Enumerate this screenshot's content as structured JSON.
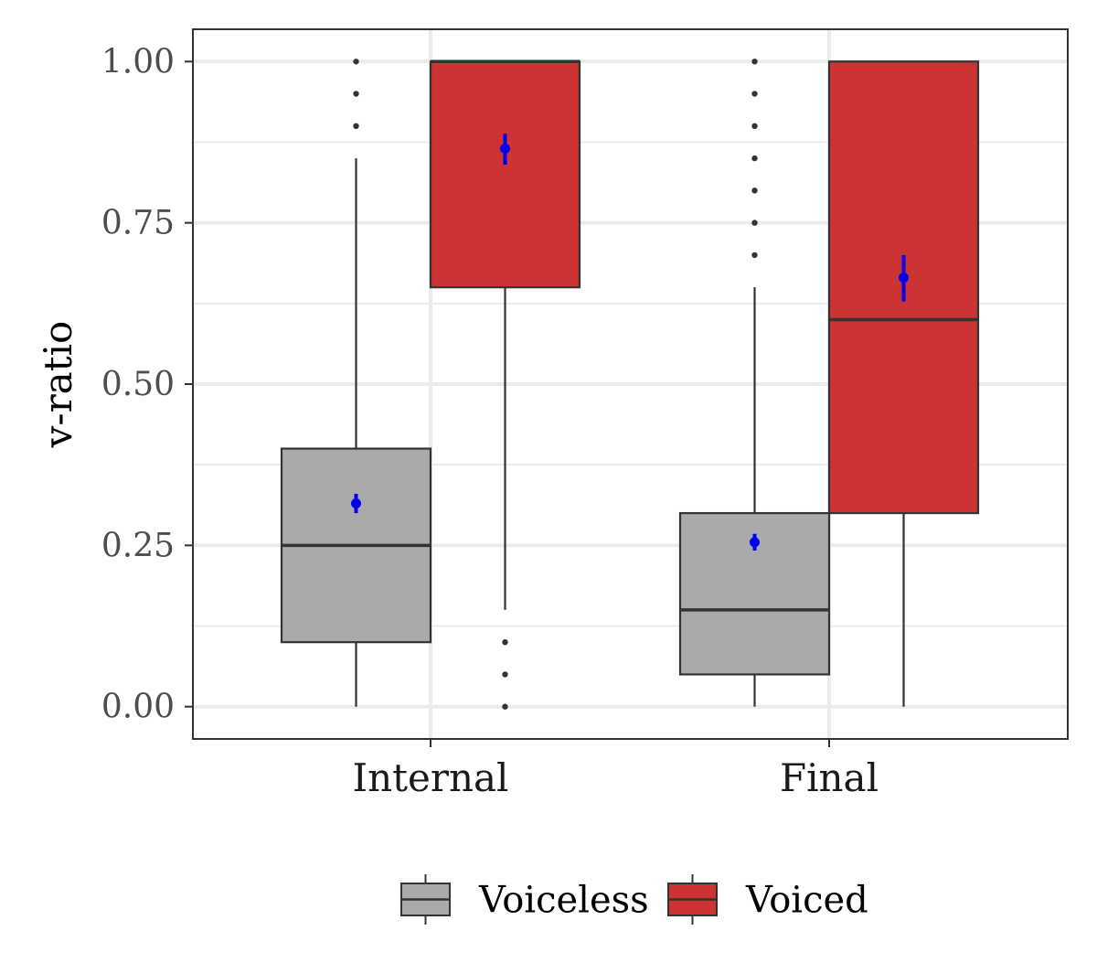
{
  "chart_data": {
    "type": "boxplot",
    "title": "",
    "xlabel": "",
    "ylabel": "v-ratio",
    "ylim": [
      -0.05,
      1.05
    ],
    "yticks": [
      0.0,
      0.25,
      0.5,
      0.75,
      1.0
    ],
    "ytick_labels": [
      "0.00",
      "0.25",
      "0.50",
      "0.75",
      "1.00"
    ],
    "categories": [
      "Internal",
      "Final"
    ],
    "grid": true,
    "legend_position": "bottom",
    "series": [
      {
        "name": "Voiceless",
        "color": "#aaaaaa",
        "boxes": [
          {
            "category": "Internal",
            "whisker_low": 0.0,
            "q1": 0.1,
            "median": 0.25,
            "q3": 0.4,
            "whisker_high": 0.85,
            "outliers": [
              0.9,
              0.95,
              1.0
            ],
            "mean": 0.315,
            "mean_ci": [
              0.3,
              0.33
            ]
          },
          {
            "category": "Final",
            "whisker_low": 0.0,
            "q1": 0.05,
            "median": 0.15,
            "q3": 0.3,
            "whisker_high": 0.65,
            "outliers": [
              0.7,
              0.75,
              0.8,
              0.85,
              0.9,
              0.95,
              1.0
            ],
            "mean": 0.255,
            "mean_ci": [
              0.242,
              0.268
            ]
          }
        ]
      },
      {
        "name": "Voiced",
        "color": "#cc3333",
        "boxes": [
          {
            "category": "Internal",
            "whisker_low": 0.15,
            "q1": 0.65,
            "median": 1.0,
            "q3": 1.0,
            "whisker_high": 1.0,
            "outliers": [
              0.0,
              0.05,
              0.1
            ],
            "mean": 0.865,
            "mean_ci": [
              0.84,
              0.888
            ]
          },
          {
            "category": "Final",
            "whisker_low": 0.0,
            "q1": 0.3,
            "median": 0.6,
            "q3": 1.0,
            "whisker_high": 1.0,
            "outliers": [],
            "mean": 0.665,
            "mean_ci": [
              0.628,
              0.7
            ]
          }
        ]
      }
    ],
    "mean_marker_color": "#0000ee"
  }
}
